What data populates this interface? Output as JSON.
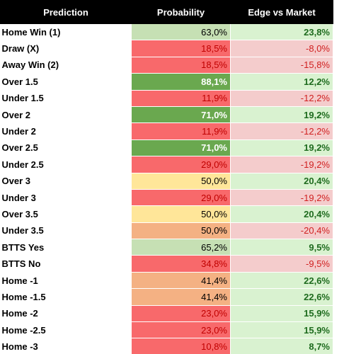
{
  "table": {
    "header": [
      "Prediction",
      "Probability",
      "Edge vs Market"
    ],
    "rows": [
      {
        "prediction": "Home Win (1)",
        "probability": "63,0%",
        "edge": "23,8%",
        "probability_color": "#c6e0b4",
        "probability_text_color": "#000000"
      },
      {
        "prediction": "Draw (X)",
        "probability": "18,5%",
        "edge": "-8,0%",
        "probability_color": "#f8696b",
        "probability_text_color": "#c00000"
      },
      {
        "prediction": "Away Win (2)",
        "probability": "18,5%",
        "edge": "-15,8%",
        "probability_color": "#f8696b",
        "probability_text_color": "#c00000"
      },
      {
        "prediction": "Over 1.5",
        "probability": "88,1%",
        "edge": "12,2%",
        "probability_color": "#6aa84f",
        "probability_text_color": "#ffffff"
      },
      {
        "prediction": "Under 1.5",
        "probability": "11,9%",
        "edge": "-12,2%",
        "probability_color": "#f8696b",
        "probability_text_color": "#c00000"
      },
      {
        "prediction": "Over 2",
        "probability": "71,0%",
        "edge": "19,2%",
        "probability_color": "#6aa84f",
        "probability_text_color": "#ffffff"
      },
      {
        "prediction": "Under 2",
        "probability": "11,9%",
        "edge": "-12,2%",
        "probability_color": "#f8696b",
        "probability_text_color": "#c00000"
      },
      {
        "prediction": "Over 2.5",
        "probability": "71,0%",
        "edge": "19,2%",
        "probability_color": "#6aa84f",
        "probability_text_color": "#ffffff"
      },
      {
        "prediction": "Under 2.5",
        "probability": "29,0%",
        "edge": "-19,2%",
        "probability_color": "#f8696b",
        "probability_text_color": "#c00000"
      },
      {
        "prediction": "Over 3",
        "probability": "50,0%",
        "edge": "20,4%",
        "probability_color": "#ffe699",
        "probability_text_color": "#000000"
      },
      {
        "prediction": "Under 3",
        "probability": "29,0%",
        "edge": "-19,2%",
        "probability_color": "#f8696b",
        "probability_text_color": "#c00000"
      },
      {
        "prediction": "Over 3.5",
        "probability": "50,0%",
        "edge": "20,4%",
        "probability_color": "#ffe699",
        "probability_text_color": "#000000"
      },
      {
        "prediction": "Under 3.5",
        "probability": "50,0%",
        "edge": "-20,4%",
        "probability_color": "#f4b183",
        "probability_text_color": "#000000"
      },
      {
        "prediction": "BTTS Yes",
        "probability": "65,2%",
        "edge": "9,5%",
        "probability_color": "#c6e0b4",
        "probability_text_color": "#000000"
      },
      {
        "prediction": "BTTS No",
        "probability": "34,8%",
        "edge": "-9,5%",
        "probability_color": "#f8696b",
        "probability_text_color": "#c00000"
      },
      {
        "prediction": "Home -1",
        "probability": "41,4%",
        "edge": "22,6%",
        "probability_color": "#f4b183",
        "probability_text_color": "#000000"
      },
      {
        "prediction": "Home -1.5",
        "probability": "41,4%",
        "edge": "22,6%",
        "probability_color": "#f4b183",
        "probability_text_color": "#000000"
      },
      {
        "prediction": "Home -2",
        "probability": "23,0%",
        "edge": "15,9%",
        "probability_color": "#f8696b",
        "probability_text_color": "#c00000"
      },
      {
        "prediction": "Home -2.5",
        "probability": "23,0%",
        "edge": "15,9%",
        "probability_color": "#f8696b",
        "probability_text_color": "#c00000"
      },
      {
        "prediction": "Home -3",
        "probability": "10,8%",
        "edge": "8,7%",
        "probability_color": "#f8696b",
        "probability_text_color": "#c00000"
      }
    ]
  }
}
